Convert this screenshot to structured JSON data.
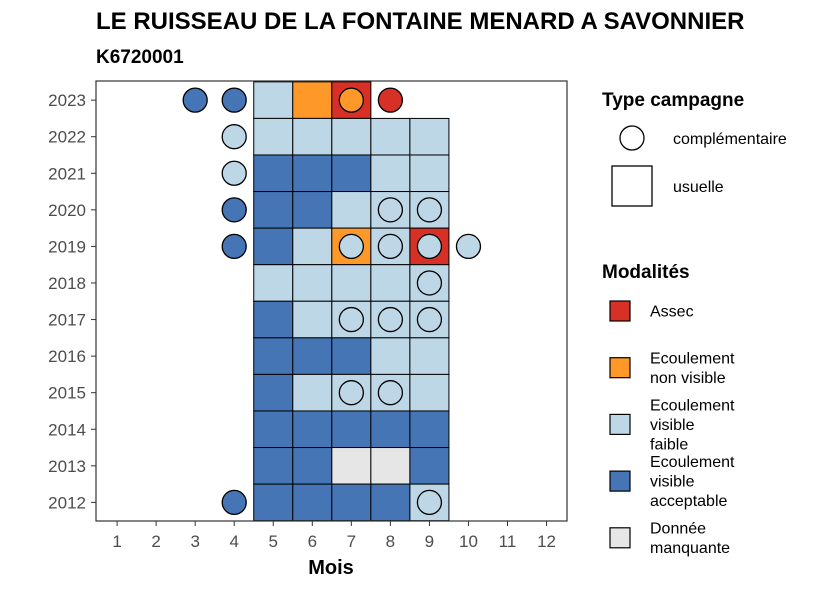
{
  "chart_data": {
    "type": "heatmap",
    "title": "LE RUISSEAU DE LA FONTAINE MENARD A SAVONNIER",
    "subtitle": "K6720001",
    "xlabel": "Mois",
    "ylabel": "",
    "x_ticks": [
      "1",
      "2",
      "3",
      "4",
      "5",
      "6",
      "7",
      "8",
      "9",
      "10",
      "11",
      "12"
    ],
    "y_ticks": [
      "2012",
      "2013",
      "2014",
      "2015",
      "2016",
      "2017",
      "2018",
      "2019",
      "2020",
      "2021",
      "2022",
      "2023"
    ],
    "xlim": [
      0.5,
      12.5
    ],
    "grid": false,
    "legend_position": "right",
    "legends": {
      "type_campagne": {
        "title": "Type campagne",
        "items": [
          {
            "key": "complementaire",
            "label": "complémentaire",
            "shape": "circle"
          },
          {
            "key": "usuelle",
            "label": "usuelle",
            "shape": "square"
          }
        ]
      },
      "modalites": {
        "title": "Modalités",
        "items": [
          {
            "key": "assec",
            "label_lines": [
              "Assec"
            ],
            "color": "#d73027"
          },
          {
            "key": "nv",
            "label_lines": [
              "Ecoulement",
              "non visible"
            ],
            "color": "#fe9929"
          },
          {
            "key": "vf",
            "label_lines": [
              "Ecoulement",
              "visible",
              "faible"
            ],
            "color": "#bdd7e7"
          },
          {
            "key": "va",
            "label_lines": [
              "Ecoulement",
              "visible",
              "acceptable"
            ],
            "color": "#4575b4"
          },
          {
            "key": "na",
            "label_lines": [
              "Donnée",
              "manquante"
            ],
            "color": "#e6e6e6"
          }
        ]
      }
    },
    "usuelle": [
      {
        "year": 2023,
        "month": 5,
        "status": "vf"
      },
      {
        "year": 2023,
        "month": 6,
        "status": "nv"
      },
      {
        "year": 2023,
        "month": 7,
        "status": "assec"
      },
      {
        "year": 2022,
        "month": 5,
        "status": "vf"
      },
      {
        "year": 2022,
        "month": 6,
        "status": "vf"
      },
      {
        "year": 2022,
        "month": 7,
        "status": "vf"
      },
      {
        "year": 2022,
        "month": 8,
        "status": "vf"
      },
      {
        "year": 2022,
        "month": 9,
        "status": "vf"
      },
      {
        "year": 2021,
        "month": 5,
        "status": "va"
      },
      {
        "year": 2021,
        "month": 6,
        "status": "va"
      },
      {
        "year": 2021,
        "month": 7,
        "status": "va"
      },
      {
        "year": 2021,
        "month": 8,
        "status": "vf"
      },
      {
        "year": 2021,
        "month": 9,
        "status": "vf"
      },
      {
        "year": 2020,
        "month": 5,
        "status": "va"
      },
      {
        "year": 2020,
        "month": 6,
        "status": "va"
      },
      {
        "year": 2020,
        "month": 7,
        "status": "vf"
      },
      {
        "year": 2020,
        "month": 8,
        "status": "vf"
      },
      {
        "year": 2020,
        "month": 9,
        "status": "vf"
      },
      {
        "year": 2019,
        "month": 5,
        "status": "va"
      },
      {
        "year": 2019,
        "month": 6,
        "status": "vf"
      },
      {
        "year": 2019,
        "month": 7,
        "status": "nv"
      },
      {
        "year": 2019,
        "month": 8,
        "status": "vf"
      },
      {
        "year": 2019,
        "month": 9,
        "status": "assec"
      },
      {
        "year": 2018,
        "month": 5,
        "status": "vf"
      },
      {
        "year": 2018,
        "month": 6,
        "status": "vf"
      },
      {
        "year": 2018,
        "month": 7,
        "status": "vf"
      },
      {
        "year": 2018,
        "month": 8,
        "status": "vf"
      },
      {
        "year": 2018,
        "month": 9,
        "status": "vf"
      },
      {
        "year": 2017,
        "month": 5,
        "status": "va"
      },
      {
        "year": 2017,
        "month": 6,
        "status": "vf"
      },
      {
        "year": 2017,
        "month": 7,
        "status": "vf"
      },
      {
        "year": 2017,
        "month": 8,
        "status": "vf"
      },
      {
        "year": 2017,
        "month": 9,
        "status": "vf"
      },
      {
        "year": 2016,
        "month": 5,
        "status": "va"
      },
      {
        "year": 2016,
        "month": 6,
        "status": "va"
      },
      {
        "year": 2016,
        "month": 7,
        "status": "va"
      },
      {
        "year": 2016,
        "month": 8,
        "status": "vf"
      },
      {
        "year": 2016,
        "month": 9,
        "status": "vf"
      },
      {
        "year": 2015,
        "month": 5,
        "status": "va"
      },
      {
        "year": 2015,
        "month": 6,
        "status": "vf"
      },
      {
        "year": 2015,
        "month": 7,
        "status": "vf"
      },
      {
        "year": 2015,
        "month": 8,
        "status": "vf"
      },
      {
        "year": 2015,
        "month": 9,
        "status": "vf"
      },
      {
        "year": 2014,
        "month": 5,
        "status": "va"
      },
      {
        "year": 2014,
        "month": 6,
        "status": "va"
      },
      {
        "year": 2014,
        "month": 7,
        "status": "va"
      },
      {
        "year": 2014,
        "month": 8,
        "status": "va"
      },
      {
        "year": 2014,
        "month": 9,
        "status": "va"
      },
      {
        "year": 2013,
        "month": 5,
        "status": "va"
      },
      {
        "year": 2013,
        "month": 6,
        "status": "va"
      },
      {
        "year": 2013,
        "month": 7,
        "status": "na"
      },
      {
        "year": 2013,
        "month": 8,
        "status": "na"
      },
      {
        "year": 2013,
        "month": 9,
        "status": "va"
      },
      {
        "year": 2012,
        "month": 5,
        "status": "va"
      },
      {
        "year": 2012,
        "month": 6,
        "status": "va"
      },
      {
        "year": 2012,
        "month": 7,
        "status": "va"
      },
      {
        "year": 2012,
        "month": 8,
        "status": "va"
      },
      {
        "year": 2012,
        "month": 9,
        "status": "vf"
      }
    ],
    "complementaire": [
      {
        "year": 2023,
        "month": 3,
        "status": "va"
      },
      {
        "year": 2023,
        "month": 4,
        "status": "va"
      },
      {
        "year": 2023,
        "month": 7,
        "status": "nv"
      },
      {
        "year": 2023,
        "month": 8,
        "status": "assec"
      },
      {
        "year": 2022,
        "month": 4,
        "status": "vf"
      },
      {
        "year": 2021,
        "month": 4,
        "status": "vf"
      },
      {
        "year": 2020,
        "month": 4,
        "status": "va"
      },
      {
        "year": 2020,
        "month": 8,
        "status": "vf"
      },
      {
        "year": 2020,
        "month": 9,
        "status": "vf"
      },
      {
        "year": 2019,
        "month": 4,
        "status": "va"
      },
      {
        "year": 2019,
        "month": 7,
        "status": "vf"
      },
      {
        "year": 2019,
        "month": 8,
        "status": "vf"
      },
      {
        "year": 2019,
        "month": 9,
        "status": "vf"
      },
      {
        "year": 2019,
        "month": 10,
        "status": "vf"
      },
      {
        "year": 2018,
        "month": 9,
        "status": "vf"
      },
      {
        "year": 2017,
        "month": 7,
        "status": "vf"
      },
      {
        "year": 2017,
        "month": 8,
        "status": "vf"
      },
      {
        "year": 2017,
        "month": 9,
        "status": "vf"
      },
      {
        "year": 2015,
        "month": 7,
        "status": "vf"
      },
      {
        "year": 2015,
        "month": 8,
        "status": "vf"
      },
      {
        "year": 2012,
        "month": 4,
        "status": "va"
      },
      {
        "year": 2012,
        "month": 9,
        "status": "vf"
      }
    ]
  }
}
